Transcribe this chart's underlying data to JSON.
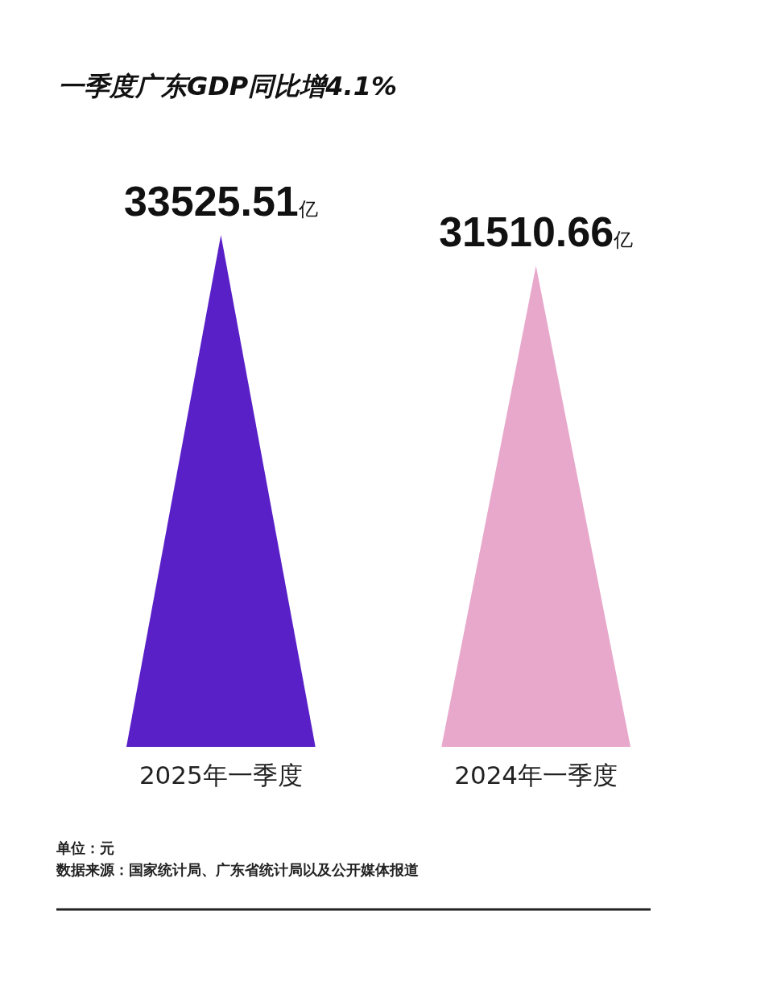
{
  "chart_data": {
    "type": "bar",
    "title": "一季度广东GDP同比增4.1%",
    "categories": [
      "2025年一季度",
      "2024年一季度"
    ],
    "values": [
      33525.51,
      31510.66
    ],
    "colors": [
      "#5a20c8",
      "#e8a8cc"
    ],
    "value_labels": [
      "33525.51亿",
      "31510.66亿"
    ],
    "annotations": [
      "单位：元",
      "数据来源：国家统计局、广东省统计局以及公开媒体报道"
    ]
  }
}
